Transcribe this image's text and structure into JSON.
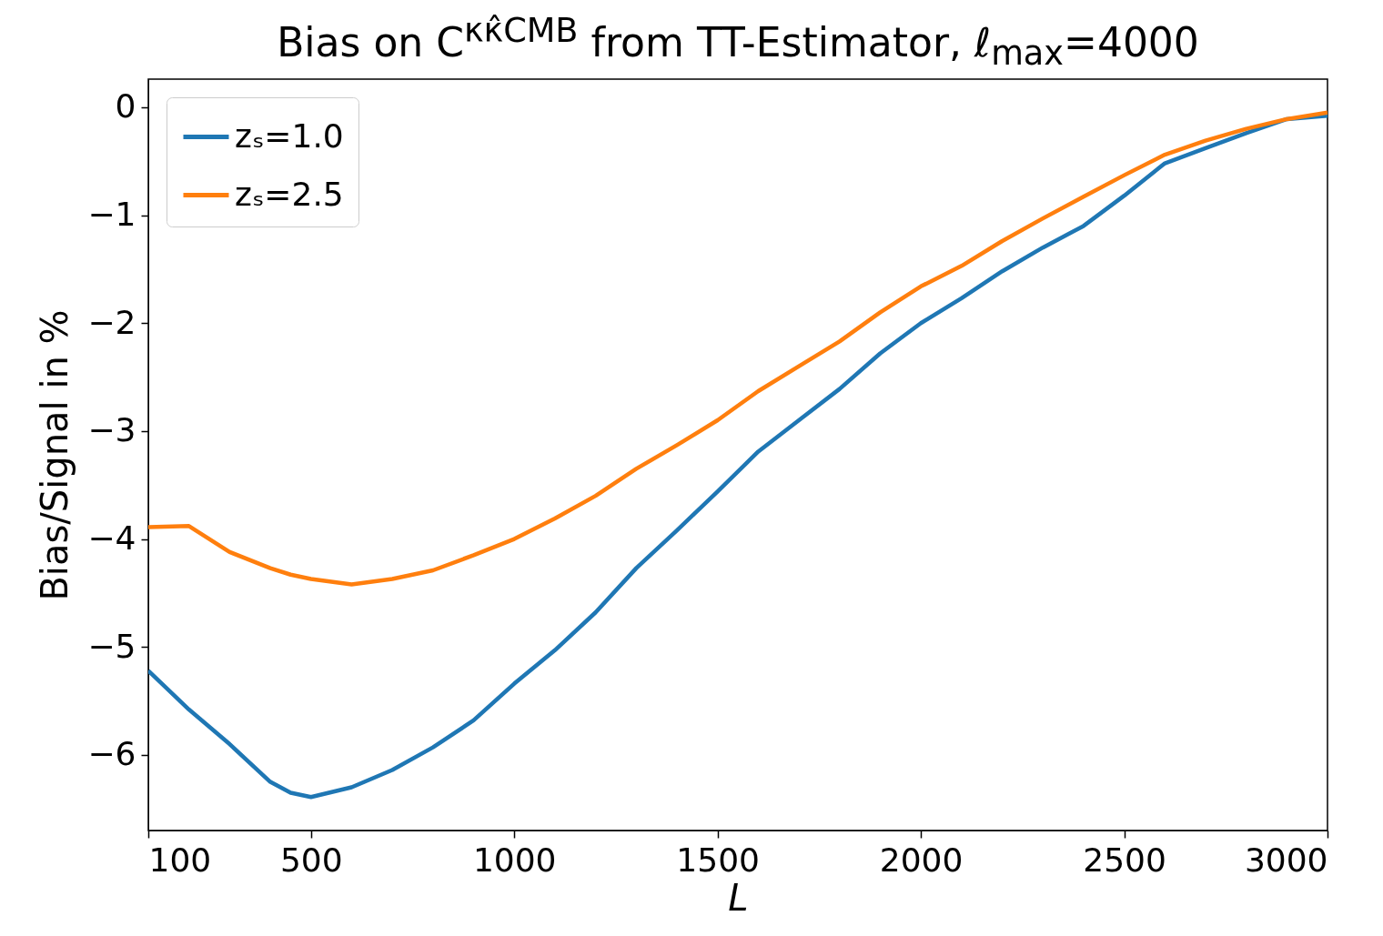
{
  "chart_data": {
    "type": "line",
    "title": "Bias on C$^{κκ̂CMB}$ from TT-Estimator, ℓ$_{max}$=4000",
    "xlabel": "L",
    "ylabel": "Bias/Signal in %",
    "x": [
      100,
      200,
      300,
      400,
      450,
      500,
      600,
      700,
      800,
      900,
      1000,
      1100,
      1200,
      1300,
      1400,
      1500,
      1600,
      1700,
      1800,
      1900,
      2000,
      2100,
      2200,
      2300,
      2400,
      2500,
      2600,
      2700,
      2800,
      2900,
      3000
    ],
    "series": [
      {
        "name": "zₛ=1.0",
        "color": "#1f77b4",
        "values": [
          -5.22,
          -5.58,
          -5.9,
          -6.25,
          -6.35,
          -6.39,
          -6.3,
          -6.14,
          -5.93,
          -5.68,
          -5.34,
          -5.03,
          -4.68,
          -4.27,
          -3.92,
          -3.56,
          -3.19,
          -2.9,
          -2.61,
          -2.28,
          -2.0,
          -1.77,
          -1.52,
          -1.3,
          -1.1,
          -0.82,
          -0.52,
          -0.38,
          -0.24,
          -0.11,
          -0.08
        ]
      },
      {
        "name": "zₛ=2.5",
        "color": "#ff7f0e",
        "values": [
          -3.89,
          -3.88,
          -4.12,
          -4.27,
          -4.33,
          -4.37,
          -4.42,
          -4.37,
          -4.29,
          -4.15,
          -4.0,
          -3.81,
          -3.6,
          -3.35,
          -3.13,
          -2.9,
          -2.63,
          -2.4,
          -2.17,
          -1.9,
          -1.66,
          -1.47,
          -1.24,
          -1.03,
          -0.83,
          -0.63,
          -0.44,
          -0.31,
          -0.2,
          -0.11,
          -0.05
        ]
      }
    ],
    "xlim": [
      100,
      3000
    ],
    "xticks": [
      100,
      500,
      1000,
      1500,
      2000,
      2500,
      3000
    ],
    "ylim": [
      -6.7,
      0.26
    ],
    "yticks": [
      0,
      -1,
      -2,
      -3,
      -4,
      -5,
      -6
    ],
    "legend": "top left",
    "grid": false
  }
}
